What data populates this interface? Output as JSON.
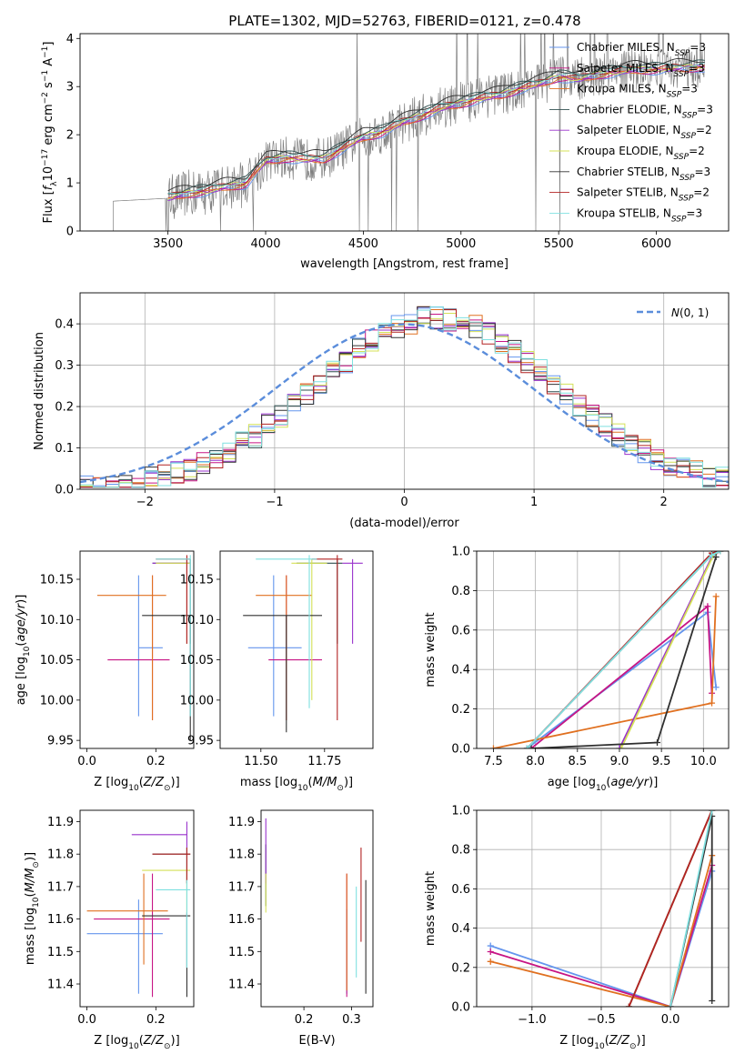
{
  "title": "PLATE=1302, MJD=52763, FIBERID=0121, z=0.478",
  "colors": [
    "#6495ED",
    "#C71585",
    "#E07020",
    "#2F4F4F",
    "#9932CC",
    "#D4E157",
    "#303030",
    "#B22222",
    "#7FE0E0"
  ],
  "chart_data": [
    {
      "type": "line",
      "name": "spectrum",
      "xlabel": "wavelength [Angstrom, rest frame]",
      "ylabel": "Flux [f_λ 10^-17 erg cm^-2 s^-1 A^-1]",
      "xlim": [
        3050,
        6370
      ],
      "ylim": [
        0,
        4.1
      ],
      "xticks": [
        3500,
        4000,
        4500,
        5000,
        5500,
        6000
      ],
      "yticks": [
        0,
        1,
        2,
        3,
        4
      ],
      "data_trend": [
        [
          3220,
          0.62
        ],
        [
          3500,
          0.68
        ],
        [
          3600,
          0.78
        ],
        [
          3700,
          0.82
        ],
        [
          3800,
          0.92
        ],
        [
          3900,
          0.98
        ],
        [
          4000,
          1.45
        ],
        [
          4100,
          1.52
        ],
        [
          4200,
          1.48
        ],
        [
          4300,
          1.5
        ],
        [
          4400,
          1.72
        ],
        [
          4500,
          1.95
        ],
        [
          4600,
          2.05
        ],
        [
          4700,
          2.25
        ],
        [
          4800,
          2.4
        ],
        [
          4900,
          2.55
        ],
        [
          5000,
          2.65
        ],
        [
          5100,
          2.75
        ],
        [
          5200,
          2.82
        ],
        [
          5300,
          2.95
        ],
        [
          5400,
          3.05
        ],
        [
          5500,
          3.2
        ],
        [
          5600,
          3.15
        ],
        [
          5700,
          3.25
        ],
        [
          5800,
          3.3
        ],
        [
          5900,
          3.35
        ],
        [
          6000,
          3.35
        ],
        [
          6100,
          3.38
        ],
        [
          6200,
          3.4
        ],
        [
          6250,
          3.4
        ]
      ],
      "legend": [
        "Chabrier MILES, N_SSP=3",
        "Salpeter MILES, N_SSP=3",
        "Kroupa MILES, N_SSP=3",
        "Chabrier ELODIE, N_SSP=3",
        "Salpeter ELODIE, N_SSP=2",
        "Kroupa ELODIE, N_SSP=2",
        "Chabrier STELIB, N_SSP=3",
        "Salpeter STELIB, N_SSP=2",
        "Kroupa STELIB, N_SSP=3"
      ],
      "legend_position": "upper right"
    },
    {
      "type": "line",
      "name": "residual histograms",
      "xlabel": "(data-model)/error",
      "ylabel": "Normed distribution",
      "xlim": [
        -2.5,
        2.5
      ],
      "ylim": [
        0,
        0.475
      ],
      "xticks": [
        -2,
        -1,
        0,
        1,
        2
      ],
      "yticks": [
        0.0,
        0.1,
        0.2,
        0.3,
        0.4
      ],
      "reference_curve": "N(0,1)",
      "legend": [
        "N(0,1)"
      ],
      "legend_position": "upper right",
      "grid": true
    },
    {
      "type": "scatter",
      "name": "age vs Z",
      "xlabel": "Z [log10(Z/Z_sun)]",
      "ylabel": "age  [log10(age/yr)]",
      "xlim": [
        -0.02,
        0.31
      ],
      "ylim": [
        9.94,
        10.185
      ],
      "xticks": [
        0.0,
        0.2
      ],
      "yticks": [
        9.95,
        10.0,
        10.05,
        10.1,
        10.15
      ],
      "points": [
        {
          "x": 0.15,
          "y": 10.065,
          "xerr": [
            0.15,
            0.22
          ],
          "yerr": [
            9.98,
            10.155
          ]
        },
        {
          "x": 0.19,
          "y": 10.05,
          "xerr": [
            0.06,
            0.24
          ],
          "yerr": [
            9.975,
            10.155
          ]
        },
        {
          "x": 0.19,
          "y": 10.13,
          "xerr": [
            0.03,
            0.23
          ],
          "yerr": [
            9.975,
            10.155
          ]
        },
        {
          "x": 0.3,
          "y": 10.17,
          "xerr": [
            0.19,
            0.3
          ],
          "yerr": [
            10.07,
            10.175
          ]
        },
        {
          "x": 0.29,
          "y": 10.17,
          "xerr": [
            0.19,
            0.3
          ],
          "yerr": [
            10.07,
            10.175
          ]
        },
        {
          "x": 0.29,
          "y": 10.17,
          "xerr": [
            0.2,
            0.3
          ],
          "yerr": [
            10.07,
            10.175
          ]
        },
        {
          "x": 0.3,
          "y": 10.105,
          "xerr": [
            0.16,
            0.3
          ],
          "yerr": [
            9.95,
            10.105
          ]
        },
        {
          "x": 0.29,
          "y": 10.175,
          "xerr": [
            0.2,
            0.3
          ],
          "yerr": [
            10.07,
            10.18
          ]
        },
        {
          "x": 0.3,
          "y": 10.175,
          "xerr": [
            0.2,
            0.3
          ],
          "yerr": [
            9.98,
            10.18
          ]
        }
      ]
    },
    {
      "type": "scatter",
      "name": "age vs mass",
      "xlabel": "mass [log10(M/M_sun)]",
      "ylabel": "",
      "xlim": [
        11.34,
        11.94
      ],
      "ylim": [
        9.94,
        10.185
      ],
      "xticks": [
        11.5,
        11.75
      ],
      "yticks": [
        9.95,
        10.0,
        10.05,
        10.1,
        10.15
      ],
      "points": [
        {
          "x": 11.55,
          "y": 10.065,
          "xerr": [
            11.45,
            11.66
          ],
          "yerr": [
            9.98,
            10.155
          ]
        },
        {
          "x": 11.6,
          "y": 10.05,
          "xerr": [
            11.53,
            11.74
          ],
          "yerr": [
            9.975,
            10.155
          ]
        },
        {
          "x": 11.6,
          "y": 10.13,
          "xerr": [
            11.48,
            11.7
          ],
          "yerr": [
            9.975,
            10.155
          ]
        },
        {
          "x": 11.8,
          "y": 10.17,
          "xerr": [
            11.64,
            11.82
          ],
          "yerr": [
            10.07,
            10.175
          ]
        },
        {
          "x": 11.86,
          "y": 10.17,
          "xerr": [
            11.82,
            11.9
          ],
          "yerr": [
            10.07,
            10.175
          ]
        },
        {
          "x": 11.7,
          "y": 10.17,
          "xerr": [
            11.62,
            11.76
          ],
          "yerr": [
            10.0,
            10.175
          ]
        },
        {
          "x": 11.6,
          "y": 10.105,
          "xerr": [
            11.43,
            11.74
          ],
          "yerr": [
            9.96,
            10.105
          ]
        },
        {
          "x": 11.8,
          "y": 10.175,
          "xerr": [
            11.7,
            11.82
          ],
          "yerr": [
            9.975,
            10.18
          ]
        },
        {
          "x": 11.69,
          "y": 10.175,
          "xerr": [
            11.48,
            11.72
          ],
          "yerr": [
            9.99,
            10.18
          ]
        }
      ]
    },
    {
      "type": "line",
      "name": "mass weight vs age",
      "xlabel": "age  [log10(age/yr)]",
      "ylabel": "mass weight",
      "xlim": [
        7.3,
        10.3
      ],
      "ylim": [
        0,
        1
      ],
      "xticks": [
        7.5,
        8.0,
        8.5,
        9.0,
        9.5,
        10.0
      ],
      "yticks": [
        0.0,
        0.2,
        0.4,
        0.6,
        0.8,
        1.0
      ],
      "grid": true,
      "series": [
        {
          "x": [
            7.9,
            10.05,
            10.15
          ],
          "y": [
            0.0,
            0.69,
            0.31
          ]
        },
        {
          "x": [
            7.95,
            10.05,
            10.1
          ],
          "y": [
            0.0,
            0.72,
            0.28
          ]
        },
        {
          "x": [
            7.5,
            10.1,
            10.15
          ],
          "y": [
            0.0,
            0.23,
            0.77
          ]
        },
        {
          "x": [
            7.9,
            10.1,
            10.2
          ],
          "y": [
            0.0,
            0.98,
            1.0
          ]
        },
        {
          "x": [
            9.0,
            10.1,
            10.2
          ],
          "y": [
            0.0,
            0.97,
            1.0
          ]
        },
        {
          "x": [
            9.02,
            10.12,
            10.2
          ],
          "y": [
            0.0,
            0.98,
            1.0
          ]
        },
        {
          "x": [
            7.95,
            9.45,
            10.15
          ],
          "y": [
            0.0,
            0.03,
            0.97
          ]
        },
        {
          "x": [
            7.9,
            10.1,
            10.2
          ],
          "y": [
            0.0,
            0.99,
            1.0
          ]
        },
        {
          "x": [
            7.9,
            10.1,
            10.2
          ],
          "y": [
            0.0,
            0.98,
            1.0
          ]
        }
      ]
    },
    {
      "type": "scatter",
      "name": "mass vs Z",
      "xlabel": "Z [log10(Z/Z_sun)]",
      "ylabel": "mass [log10(M/M_sun)]",
      "xlim": [
        -0.02,
        0.31
      ],
      "ylim": [
        11.33,
        11.935
      ],
      "xticks": [
        0.0,
        0.2
      ],
      "yticks": [
        11.4,
        11.5,
        11.6,
        11.7,
        11.8,
        11.9
      ],
      "points": [
        {
          "x": 0.15,
          "y": 11.555,
          "xerr": [
            0.0,
            0.22
          ],
          "yerr": [
            11.37,
            11.66
          ]
        },
        {
          "x": 0.19,
          "y": 11.6,
          "xerr": [
            0.02,
            0.24
          ],
          "yerr": [
            11.36,
            11.74
          ]
        },
        {
          "x": 0.165,
          "y": 11.625,
          "xerr": [
            0.0,
            0.235
          ],
          "yerr": [
            11.46,
            11.74
          ]
        },
        {
          "x": 0.29,
          "y": 11.8,
          "xerr": [
            0.19,
            0.3
          ],
          "yerr": [
            11.71,
            11.82
          ]
        },
        {
          "x": 0.29,
          "y": 11.86,
          "xerr": [
            0.13,
            0.29
          ],
          "yerr": [
            11.82,
            11.9
          ]
        },
        {
          "x": 0.29,
          "y": 11.75,
          "xerr": [
            0.16,
            0.3
          ],
          "yerr": [
            11.62,
            11.76
          ]
        },
        {
          "x": 0.29,
          "y": 11.61,
          "xerr": [
            0.16,
            0.3
          ],
          "yerr": [
            11.36,
            11.62
          ]
        },
        {
          "x": 0.29,
          "y": 11.8,
          "xerr": [
            0.19,
            0.3
          ],
          "yerr": [
            11.71,
            11.82
          ]
        },
        {
          "x": 0.29,
          "y": 11.69,
          "xerr": [
            0.2,
            0.3
          ],
          "yerr": [
            11.45,
            11.72
          ]
        }
      ]
    },
    {
      "type": "scatter",
      "name": "mass vs E(B-V)",
      "xlabel": "E(B-V)",
      "ylabel": "",
      "xlim": [
        0.11,
        0.345
      ],
      "ylim": [
        11.33,
        11.935
      ],
      "xticks": [
        0.2,
        0.3
      ],
      "yticks": [
        11.4,
        11.5,
        11.6,
        11.7,
        11.8,
        11.9
      ],
      "points": [
        {
          "x": 0.29,
          "y": 11.555,
          "yerr": [
            11.37,
            11.63
          ]
        },
        {
          "x": 0.29,
          "y": 11.6,
          "yerr": [
            11.36,
            11.74
          ]
        },
        {
          "x": 0.29,
          "y": 11.6,
          "yerr": [
            11.38,
            11.74
          ]
        },
        {
          "x": 0.12,
          "y": 11.8,
          "yerr": [
            11.64,
            11.83
          ]
        },
        {
          "x": 0.12,
          "y": 11.86,
          "yerr": [
            11.71,
            11.91
          ]
        },
        {
          "x": 0.12,
          "y": 11.7,
          "yerr": [
            11.62,
            11.74
          ]
        },
        {
          "x": 0.33,
          "y": 11.6,
          "yerr": [
            11.37,
            11.72
          ]
        },
        {
          "x": 0.32,
          "y": 11.7,
          "yerr": [
            11.53,
            11.82
          ]
        },
        {
          "x": 0.31,
          "y": 11.55,
          "yerr": [
            11.42,
            11.7
          ]
        }
      ]
    },
    {
      "type": "line",
      "name": "mass weight vs Z",
      "xlabel": "Z [log10(Z/Z_sun)]",
      "ylabel": "mass weight",
      "xlim": [
        -1.4,
        0.42
      ],
      "ylim": [
        0,
        1
      ],
      "xticks": [
        -1.0,
        -0.5,
        0.0
      ],
      "yticks": [
        0.0,
        0.2,
        0.4,
        0.6,
        0.8,
        1.0
      ],
      "grid": true,
      "series": [
        {
          "x": [
            -1.3,
            0.0,
            0.3
          ],
          "y": [
            0.31,
            0.0,
            0.69
          ]
        },
        {
          "x": [
            -1.3,
            0.0,
            0.3
          ],
          "y": [
            0.28,
            0.0,
            0.72
          ]
        },
        {
          "x": [
            -1.3,
            0.0,
            0.3
          ],
          "y": [
            0.23,
            0.0,
            0.77
          ]
        },
        {
          "x": [
            -0.3,
            0.3
          ],
          "y": [
            0.0,
            1.0
          ]
        },
        {
          "x": [
            -0.3,
            0.3
          ],
          "y": [
            0.0,
            1.0
          ]
        },
        {
          "x": [
            -0.3,
            0.3
          ],
          "y": [
            0.0,
            1.0
          ]
        },
        {
          "x": [
            0.0,
            0.3,
            0.3
          ],
          "y": [
            0.0,
            0.97,
            0.03
          ]
        },
        {
          "x": [
            -0.3,
            0.3
          ],
          "y": [
            0.0,
            1.0
          ]
        },
        {
          "x": [
            0.0,
            0.3
          ],
          "y": [
            0.0,
            1.0
          ]
        }
      ]
    }
  ]
}
